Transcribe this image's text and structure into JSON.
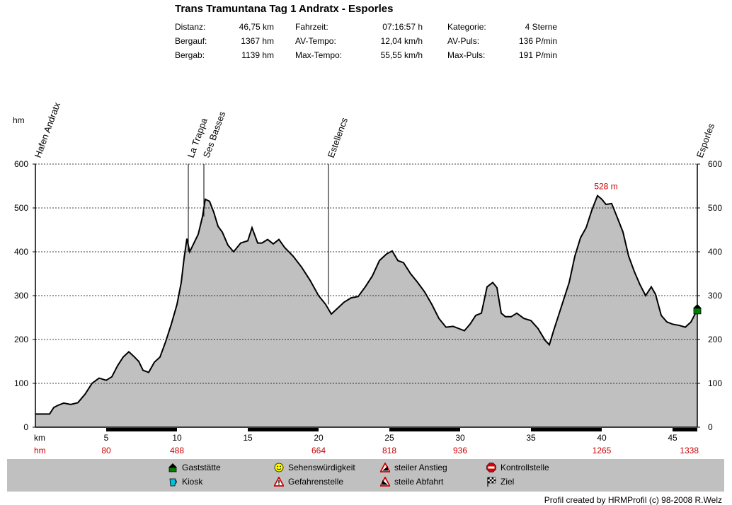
{
  "header": {
    "title": "Trans Tramuntana Tag 1 Andratx - Esporles",
    "stats": [
      [
        {
          "label": "Distanz:",
          "value": "46,75 km"
        },
        {
          "label": "Fahrzeit:",
          "value": "07:16:57 h"
        },
        {
          "label": "Kategorie:",
          "value": "4 Sterne"
        }
      ],
      [
        {
          "label": "Bergauf:",
          "value": "1367 hm"
        },
        {
          "label": "AV-Tempo:",
          "value": "12,04 km/h"
        },
        {
          "label": "AV-Puls:",
          "value": "136 P/min"
        }
      ],
      [
        {
          "label": "Bergab:",
          "value": "1139 hm"
        },
        {
          "label": "Max-Tempo:",
          "value": "55,55 km/h"
        },
        {
          "label": "Max-Puls:",
          "value": "191 P/min"
        }
      ]
    ]
  },
  "chart_data": {
    "type": "area",
    "ylabel": "hm",
    "xlabel": "km",
    "xlim": [
      0,
      46.75
    ],
    "ylim": [
      0,
      600
    ],
    "y_ticks": [
      0,
      100,
      200,
      300,
      400,
      500,
      600
    ],
    "x_ticks": [
      5,
      10,
      15,
      20,
      25,
      30,
      35,
      40,
      45
    ],
    "grid": true,
    "fill_color": "#c0c0c0",
    "x": [
      0,
      1.0,
      1.3,
      1.6,
      2.0,
      2.5,
      3.0,
      3.5,
      4.0,
      4.5,
      5.0,
      5.4,
      5.8,
      6.2,
      6.6,
      7.0,
      7.3,
      7.6,
      8.0,
      8.4,
      8.8,
      9.2,
      9.6,
      10.0,
      10.3,
      10.5,
      10.7,
      10.9,
      11.2,
      11.5,
      11.8,
      12.0,
      12.3,
      12.6,
      12.9,
      13.2,
      13.6,
      14.0,
      14.5,
      15.0,
      15.3,
      15.7,
      16.0,
      16.4,
      16.8,
      17.2,
      17.6,
      18.2,
      18.8,
      19.4,
      20.0,
      20.5,
      20.9,
      21.3,
      21.8,
      22.3,
      22.8,
      23.3,
      23.8,
      24.3,
      24.8,
      25.2,
      25.6,
      26.0,
      26.5,
      27.0,
      27.5,
      28.0,
      28.5,
      29.0,
      29.5,
      29.9,
      30.3,
      30.7,
      31.1,
      31.5,
      31.9,
      32.3,
      32.6,
      32.9,
      33.2,
      33.6,
      34.0,
      34.5,
      35.0,
      35.5,
      36.0,
      36.3,
      36.6,
      36.9,
      37.3,
      37.7,
      38.1,
      38.5,
      38.9,
      39.3,
      39.7,
      40.0,
      40.3,
      40.7,
      41.1,
      41.5,
      41.9,
      42.3,
      42.7,
      43.1,
      43.5,
      43.8,
      44.2,
      44.6,
      45.0,
      45.5,
      45.9,
      46.3,
      46.75
    ],
    "y": [
      30,
      30,
      45,
      50,
      55,
      52,
      56,
      75,
      100,
      112,
      107,
      115,
      140,
      160,
      172,
      160,
      150,
      130,
      125,
      148,
      160,
      195,
      235,
      280,
      330,
      385,
      430,
      400,
      420,
      440,
      480,
      520,
      515,
      490,
      458,
      445,
      415,
      400,
      420,
      425,
      455,
      420,
      420,
      428,
      418,
      428,
      410,
      390,
      365,
      335,
      300,
      280,
      258,
      270,
      285,
      295,
      298,
      320,
      345,
      380,
      395,
      402,
      380,
      375,
      350,
      330,
      308,
      280,
      248,
      228,
      230,
      225,
      220,
      235,
      255,
      260,
      320,
      330,
      318,
      260,
      252,
      252,
      260,
      248,
      243,
      225,
      198,
      188,
      220,
      250,
      290,
      330,
      390,
      432,
      455,
      495,
      528,
      520,
      508,
      510,
      478,
      445,
      390,
      355,
      325,
      300,
      320,
      303,
      255,
      240,
      235,
      232,
      228,
      240,
      268
    ],
    "peak_annotation": {
      "x": 40.0,
      "y": 528,
      "label": "528 m",
      "color": "#cc0000"
    },
    "waypoints": [
      {
        "name": "Hafen Andratx",
        "x": 0.0
      },
      {
        "name": "La Trappa",
        "x": 10.8
      },
      {
        "name": "Ses Basses",
        "x": 11.9
      },
      {
        "name": "Estellencs",
        "x": 20.7
      },
      {
        "name": "Esporles",
        "x": 46.75
      }
    ],
    "cumulative_ascent": {
      "label": "hm",
      "points": [
        {
          "x": 5,
          "value": "80"
        },
        {
          "x": 10,
          "value": "488"
        },
        {
          "x": 20,
          "value": "664"
        },
        {
          "x": 25,
          "value": "818"
        },
        {
          "x": 30,
          "value": "936"
        },
        {
          "x": 40,
          "value": "1265"
        },
        {
          "x": 46.75,
          "value": "1338"
        }
      ],
      "color": "#cc0000"
    },
    "end_marker": {
      "x": 46.75,
      "y": 268,
      "icon": "gaststaette-icon"
    }
  },
  "legend": {
    "items": [
      {
        "label": "Gaststätte",
        "icon": "gaststaette-icon"
      },
      {
        "label": "Kiosk",
        "icon": "kiosk-icon"
      },
      {
        "label": "Sehenswürdigkeit",
        "icon": "sehenswuerdigkeit-icon"
      },
      {
        "label": "Gefahrenstelle",
        "icon": "gefahrenstelle-icon"
      },
      {
        "label": "steiler Anstieg",
        "icon": "steiler-anstieg-icon"
      },
      {
        "label": "steile Abfahrt",
        "icon": "steile-abfahrt-icon"
      },
      {
        "label": "Kontrollstelle",
        "icon": "kontrollstelle-icon"
      },
      {
        "label": "Ziel",
        "icon": "ziel-icon"
      }
    ]
  },
  "footer": {
    "credit": "Profil created by HRMProfil (c) 98-2008 R.Welz"
  }
}
